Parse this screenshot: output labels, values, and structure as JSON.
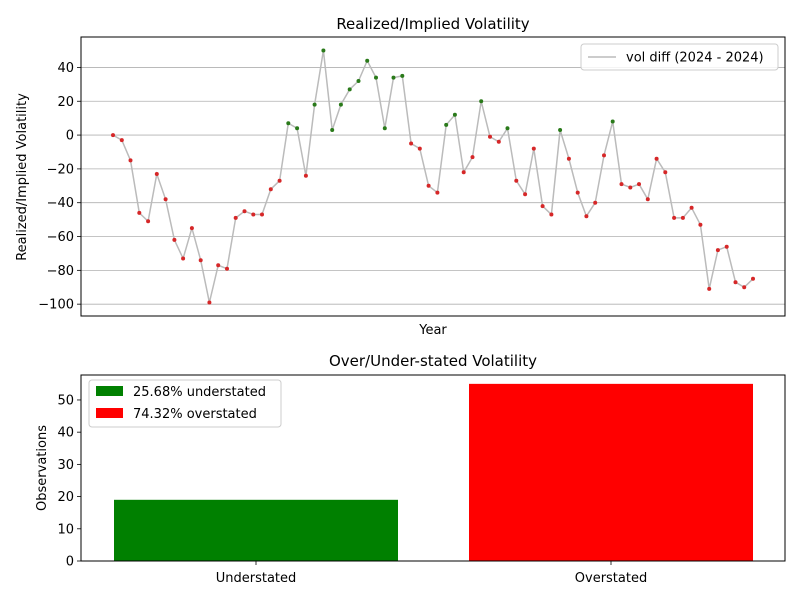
{
  "chart_data": [
    {
      "type": "line",
      "title": "Realized/Implied Volatility",
      "xlabel": "Year",
      "ylabel": "Realized/Implied Volatility",
      "ylim": [
        -107,
        58
      ],
      "yticks": [
        -100,
        -80,
        -60,
        -40,
        -20,
        0,
        20,
        40
      ],
      "grid": "horizontal",
      "legend_position": "top-right",
      "series": [
        {
          "name": "vol diff (2024 - 2024)",
          "color": "#bbbbbb",
          "marker_color_positive": "#2a7a1a",
          "marker_color_negative": "#d62728",
          "values": [
            0,
            -3,
            -15,
            -46,
            -51,
            -23,
            -38,
            -62,
            -73,
            -55,
            -74,
            -99,
            -77,
            -79,
            -49,
            -45,
            -47,
            -47,
            -32,
            -27,
            7,
            4,
            -24,
            18,
            50,
            3,
            18,
            27,
            32,
            44,
            34,
            4,
            34,
            35,
            -5,
            -8,
            -30,
            -34,
            6,
            12,
            -22,
            -13,
            20,
            -1,
            -4,
            4,
            -27,
            -35,
            -8,
            -42,
            -47,
            3,
            -14,
            -34,
            -48,
            -40,
            -12,
            8,
            -29,
            -31,
            -29,
            -38,
            -14,
            -22,
            -49,
            -49,
            -43,
            -53,
            -91,
            -68,
            -66,
            -87,
            -90,
            -85
          ]
        }
      ]
    },
    {
      "type": "bar",
      "title": "Over/Under-stated Volatility",
      "ylabel": "Observations",
      "categories": [
        "Understated",
        "Overstated"
      ],
      "values": [
        19,
        55
      ],
      "colors": [
        "#008000",
        "#ff0000"
      ],
      "ylim": [
        0,
        57.75
      ],
      "yticks": [
        0,
        10,
        20,
        30,
        40,
        50
      ],
      "legend_position": "top-left",
      "legend": [
        {
          "label": "25.68% understated",
          "color": "#008000"
        },
        {
          "label": "74.32% overstated",
          "color": "#ff0000"
        }
      ]
    }
  ]
}
